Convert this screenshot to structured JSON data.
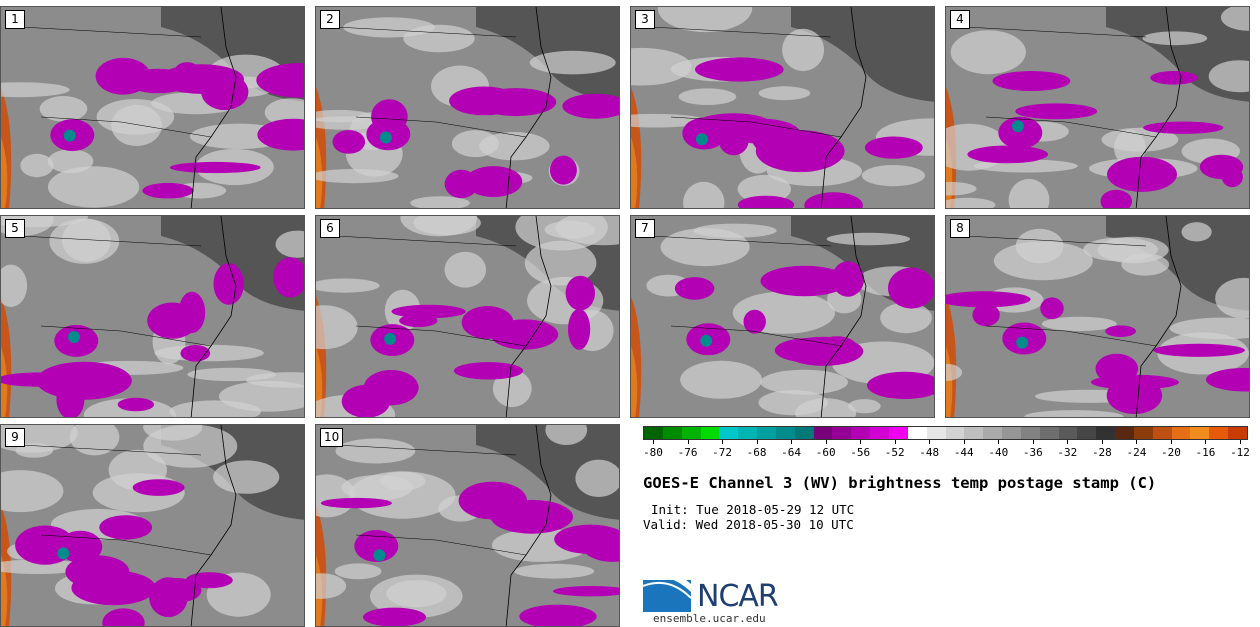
{
  "panels": [
    {
      "label": "1"
    },
    {
      "label": "2"
    },
    {
      "label": "3"
    },
    {
      "label": "4"
    },
    {
      "label": "5"
    },
    {
      "label": "6"
    },
    {
      "label": "7"
    },
    {
      "label": "8"
    },
    {
      "label": "9"
    },
    {
      "label": "10"
    }
  ],
  "colorbar": {
    "tick_labels": [
      "-80",
      "-76",
      "-72",
      "-68",
      "-64",
      "-60",
      "-56",
      "-52",
      "-48",
      "-44",
      "-40",
      "-36",
      "-32",
      "-28",
      "-24",
      "-20",
      "-16",
      "-12"
    ],
    "colors": [
      "#006400",
      "#008c00",
      "#00b400",
      "#00dc00",
      "#00c8c8",
      "#00b4b4",
      "#00a0a0",
      "#008c8c",
      "#007878",
      "#780078",
      "#960096",
      "#b400b4",
      "#d200d2",
      "#f000f0",
      "#ffffff",
      "#e6e6e6",
      "#d2d2d2",
      "#bebebe",
      "#aaaaaa",
      "#969696",
      "#828282",
      "#6e6e6e",
      "#5a5a5a",
      "#464646",
      "#323232",
      "#5a2810",
      "#8c3c0a",
      "#be5014",
      "#e66e14",
      "#f08c1e",
      "#e65a0a",
      "#c83c00"
    ]
  },
  "title": "GOES-E Channel 3 (WV) brightness temp postage stamp (C)",
  "init": "Init: Tue 2018-05-29 12 UTC",
  "valid": "Valid: Wed 2018-05-30 10 UTC",
  "logo": {
    "name": "NCAR",
    "url": "ensemble.ucar.edu"
  }
}
